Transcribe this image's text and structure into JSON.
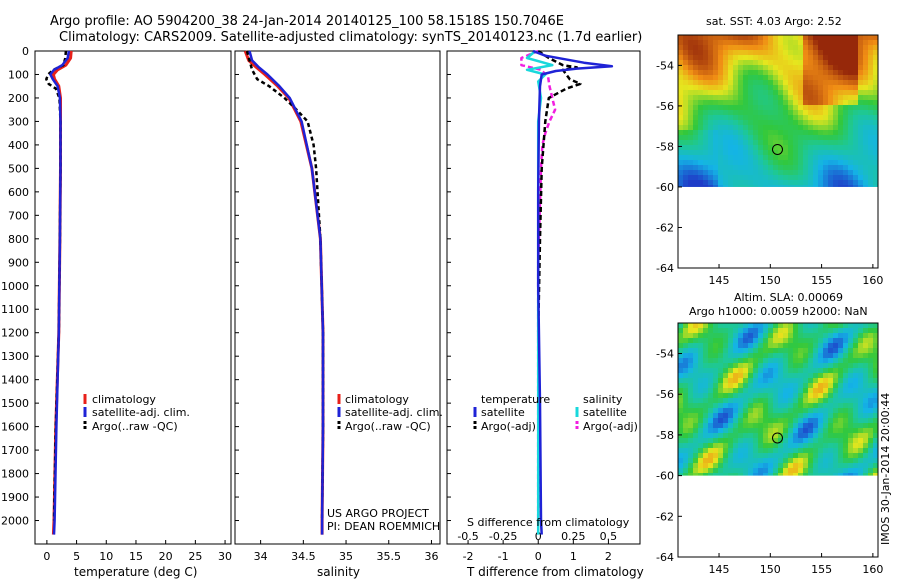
{
  "header": {
    "line1": "Argo profile: AO 5904200_38 24-Jan-2014 20140125_100 58.1518S 150.7046E",
    "line2": "Climatology: CARS2009. Satellite-adjusted climatology: synTS_20140123.nc (1.7d earlier)"
  },
  "colors": {
    "climatology": "#e8201a",
    "satellite": "#1f23d6",
    "argo": "#000000",
    "satellite_diff": "#19d8dc",
    "argo_adj_diff": "#f21ee0"
  },
  "chart_data": [
    {
      "type": "line",
      "id": "temperature",
      "xlabel": "temperature (deg C)",
      "xlim": [
        -2,
        31
      ],
      "xticks": [
        0,
        5,
        10,
        15,
        20,
        25,
        30
      ],
      "ylim": [
        2100,
        0
      ],
      "yticks": [
        0,
        100,
        200,
        300,
        400,
        500,
        600,
        700,
        800,
        900,
        1000,
        1100,
        1200,
        1300,
        1400,
        1500,
        1600,
        1700,
        1800,
        1900,
        2000
      ],
      "legend": [
        "climatology",
        "satellite-adj. clim.",
        "Argo(..raw -QC)"
      ],
      "series": [
        {
          "name": "climatology",
          "depth": [
            0,
            30,
            60,
            80,
            100,
            120,
            150,
            200,
            300,
            500,
            800,
            1200,
            1600,
            2000,
            2060
          ],
          "values": [
            4.1,
            4.0,
            3.2,
            1.8,
            1.1,
            1.3,
            2.0,
            2.3,
            2.3,
            2.3,
            2.2,
            2.0,
            1.5,
            1.2,
            1.1
          ]
        },
        {
          "name": "satellite-adj. clim.",
          "depth": [
            0,
            30,
            60,
            80,
            100,
            120,
            150,
            200,
            300,
            500,
            800,
            1200,
            1600,
            2000,
            2060
          ],
          "values": [
            3.7,
            3.5,
            2.6,
            1.2,
            0.6,
            1.0,
            1.8,
            2.2,
            2.3,
            2.3,
            2.2,
            2.0,
            1.6,
            1.3,
            1.2
          ]
        },
        {
          "name": "Argo(..raw -QC)",
          "depth": [
            0,
            30,
            60,
            80,
            100,
            120,
            140,
            160,
            200,
            300,
            500,
            800,
            1200,
            1600,
            2000
          ],
          "values": [
            3.2,
            3.1,
            2.8,
            1.1,
            0.2,
            -0.1,
            0.3,
            1.5,
            2.1,
            2.3,
            2.3,
            2.2,
            2.0,
            1.5,
            1.2
          ]
        }
      ]
    },
    {
      "type": "line",
      "id": "salinity",
      "xlabel": "salinity",
      "xlim": [
        33.7,
        36.1
      ],
      "xticks": [
        34,
        34.5,
        35,
        35.5,
        36
      ],
      "ylim": [
        2100,
        0
      ],
      "legend": [
        "climatology",
        "satellite-adj. clim.",
        "Argo(..raw -QC)"
      ],
      "annotations": [
        "US ARGO PROJECT",
        "PI: DEAN ROEMMICH"
      ],
      "series": [
        {
          "name": "climatology",
          "depth": [
            0,
            40,
            70,
            100,
            150,
            200,
            300,
            500,
            800,
            1200,
            1600,
            2000,
            2060
          ],
          "values": [
            33.82,
            33.86,
            33.95,
            34.05,
            34.2,
            34.33,
            34.47,
            34.6,
            34.7,
            34.73,
            34.73,
            34.72,
            34.72
          ]
        },
        {
          "name": "satellite-adj. clim.",
          "depth": [
            0,
            40,
            70,
            100,
            150,
            200,
            300,
            500,
            800,
            1200,
            1600,
            2000,
            2060
          ],
          "values": [
            33.87,
            33.9,
            33.98,
            34.08,
            34.22,
            34.34,
            34.48,
            34.6,
            34.7,
            34.73,
            34.73,
            34.72,
            34.72
          ]
        },
        {
          "name": "Argo(..raw -QC)",
          "depth": [
            0,
            40,
            80,
            120,
            150,
            200,
            250,
            300,
            400,
            500,
            800,
            1200,
            1600,
            2000
          ],
          "values": [
            33.84,
            33.87,
            33.9,
            33.96,
            34.1,
            34.28,
            34.42,
            34.55,
            34.62,
            34.65,
            34.7,
            34.73,
            34.73,
            34.72
          ]
        }
      ]
    },
    {
      "type": "line",
      "id": "difference",
      "xlabel": "T difference from climatology",
      "x2label": "S difference from climatology",
      "xlim": [
        -2.6,
        2.9
      ],
      "xticks": [
        -2,
        -1,
        0,
        1,
        2
      ],
      "x2ticks": [
        -0.5,
        -0.25,
        0,
        0.25,
        0.5
      ],
      "x2tick_labels": [
        "-0.5",
        "-0.25",
        "0",
        "0.25",
        "0.5"
      ],
      "ylim": [
        2100,
        0
      ],
      "legend_headers": [
        "temperature",
        "salinity"
      ],
      "legend": [
        "satellite",
        "Argo(-adj)",
        "satellite",
        "Argo(-adj)"
      ],
      "series": [
        {
          "name": "temperature satellite",
          "depth": [
            0,
            20,
            50,
            65,
            75,
            85,
            100,
            150,
            300,
            600,
            1000,
            1500,
            2000,
            2060
          ],
          "values": [
            -0.15,
            0.2,
            1.3,
            2.1,
            1.1,
            0.5,
            0.1,
            0.05,
            0.02,
            0.0,
            0.0,
            0.05,
            0.08,
            0.1
          ]
        },
        {
          "name": "temperature Argo(-adj)",
          "depth": [
            0,
            30,
            60,
            70,
            80,
            100,
            120,
            140,
            160,
            200,
            300,
            500,
            800,
            1200,
            1600,
            2000
          ],
          "values": [
            0.0,
            0.3,
            0.7,
            1.1,
            0.7,
            0.8,
            0.9,
            1.2,
            0.8,
            0.3,
            0.2,
            0.1,
            0.05,
            0.0,
            0.02,
            0.0
          ]
        },
        {
          "name": "salinity satellite",
          "depth": [
            0,
            30,
            60,
            80,
            100,
            130,
            200,
            300,
            600,
            1000,
            1500,
            2000,
            2060
          ],
          "values": [
            -0.02,
            -0.08,
            0.1,
            -0.08,
            0.05,
            0.0,
            0.02,
            0.0,
            0.0,
            0.0,
            0.0,
            0.0,
            0.0
          ]
        },
        {
          "name": "salinity Argo(-adj)",
          "depth": [
            0,
            30,
            60,
            80,
            110,
            150,
            200,
            250,
            300,
            350,
            400,
            500,
            700,
            900,
            1200,
            1600,
            2000
          ],
          "values": [
            0.0,
            -0.12,
            -0.12,
            0.02,
            0.07,
            0.08,
            0.1,
            0.12,
            0.08,
            0.05,
            0.03,
            0.02,
            0.01,
            0.0,
            0.0,
            0.0,
            0.0
          ]
        }
      ]
    },
    {
      "type": "heatmap",
      "id": "sst_map",
      "title": "sat. SST: 4.03 Argo: 2.52",
      "xlim": [
        141,
        160.5
      ],
      "ylim": [
        -64,
        -52.5
      ],
      "xticks": [
        145,
        150,
        155,
        160
      ],
      "yticks": [
        -54,
        -56,
        -58,
        -60,
        -62,
        -64
      ],
      "data_lat_min": -60,
      "marker": {
        "lon": 150.7,
        "lat": -58.15
      }
    },
    {
      "type": "heatmap",
      "id": "sla_map",
      "title1": "Altim. SLA: 0.00069",
      "title2": "Argo h1000: 0.0059 h2000: NaN",
      "xlim": [
        141,
        160.5
      ],
      "ylim": [
        -64,
        -52.5
      ],
      "xticks": [
        145,
        150,
        155,
        160
      ],
      "yticks": [
        -54,
        -56,
        -58,
        -60,
        -62,
        -64
      ],
      "data_lat_min": -60,
      "marker": {
        "lon": 150.7,
        "lat": -58.15
      }
    }
  ],
  "watermark": "IMOS 30-Jan-2014 20:00:44"
}
